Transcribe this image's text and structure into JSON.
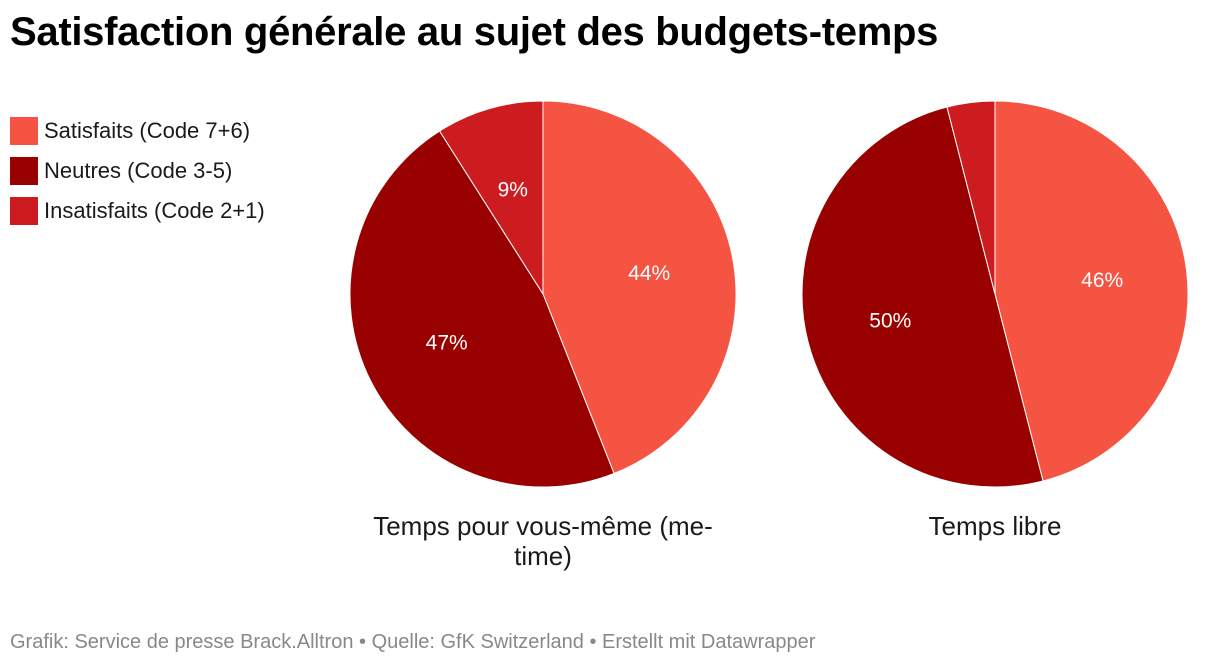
{
  "title": "Satisfaction générale au sujet des budgets-temps",
  "legend": [
    {
      "label": "Satisfaits (Code 7+6)",
      "color": "#f55443"
    },
    {
      "label": "Neutres (Code 3-5)",
      "color": "#990000"
    },
    {
      "label": "Insatisfaits (Code 2+1)",
      "color": "#cc1c1f"
    }
  ],
  "chart_data": [
    {
      "type": "pie",
      "title_lines": [
        "Temps pour vous-même (me-",
        "time)"
      ],
      "slices": [
        {
          "name": "Satisfaits (Code 7+6)",
          "value": 44,
          "label": "44%",
          "color": "#f55443"
        },
        {
          "name": "Neutres (Code 3-5)",
          "value": 47,
          "label": "47%",
          "color": "#990000"
        },
        {
          "name": "Insatisfaits (Code 2+1)",
          "value": 9,
          "label": "9%",
          "color": "#cc1c1f"
        }
      ]
    },
    {
      "type": "pie",
      "title_lines": [
        "Temps libre"
      ],
      "slices": [
        {
          "name": "Satisfaits (Code 7+6)",
          "value": 46,
          "label": "46%",
          "color": "#f55443"
        },
        {
          "name": "Neutres (Code 3-5)",
          "value": 50,
          "label": "50%",
          "color": "#990000"
        },
        {
          "name": "Insatisfaits (Code 2+1)",
          "value": 4,
          "label": "",
          "color": "#cc1c1f"
        }
      ]
    }
  ],
  "footer": "Grafik: Service de presse Brack.Alltron • Quelle: GfK Switzerland • Erstellt mit Datawrapper"
}
